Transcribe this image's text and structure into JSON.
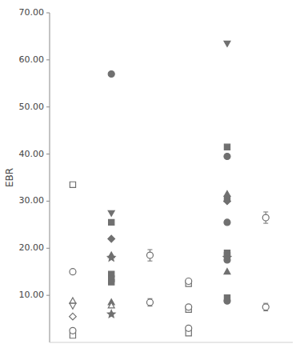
{
  "chart_data": {
    "type": "scatter",
    "ylabel": "EBR",
    "xlim": [
      0.4,
      6.7
    ],
    "xticks": [],
    "ylim": [
      0,
      70
    ],
    "yticks": [
      {
        "value": 10,
        "label": "10.00"
      },
      {
        "value": 20,
        "label": "20.00"
      },
      {
        "value": 30,
        "label": "30.00"
      },
      {
        "value": 40,
        "label": "40.00"
      },
      {
        "value": 50,
        "label": "50.00"
      },
      {
        "value": 60,
        "label": "60.00"
      },
      {
        "value": 70,
        "label": "70.00"
      }
    ],
    "grid": false,
    "tick_labels": "y",
    "color": "#707070",
    "series": [
      {
        "marker": "square",
        "x": [
          1,
          1,
          2,
          2,
          2,
          2,
          4,
          4,
          4,
          5,
          5,
          5,
          5,
          5
        ],
        "values": [
          33.5,
          1.5,
          25.5,
          14.5,
          13.5,
          12.8,
          12.5,
          7.0,
          2.0,
          41.5,
          30.5,
          19.0,
          18.5,
          9.5
        ],
        "colors": [
          "#ffffff",
          "#ffffff",
          "#707070",
          "#707070",
          "#707070",
          "#707070",
          "#ffffff",
          "#ffffff",
          "#ffffff",
          "#707070",
          "#707070",
          "#707070",
          "#707070",
          "#707070"
        ]
      },
      {
        "marker": "circle",
        "x": [
          1,
          1,
          2,
          3,
          3,
          4,
          4,
          4,
          5,
          5,
          5,
          5,
          6,
          6
        ],
        "values": [
          15.0,
          2.5,
          57.0,
          18.5,
          8.5,
          13.0,
          7.5,
          3.0,
          39.5,
          25.5,
          17.5,
          8.8,
          26.5,
          7.5
        ],
        "errors": [
          null,
          null,
          null,
          1.2,
          0.8,
          null,
          null,
          null,
          null,
          null,
          null,
          null,
          1.2,
          0.8
        ],
        "colors": [
          "#ffffff",
          "#ffffff",
          "#707070",
          "#ffffff",
          "#ffffff",
          "#ffffff",
          "#ffffff",
          "#ffffff",
          "#707070",
          "#707070",
          "#707070",
          "#707070",
          "#ffffff",
          "#ffffff"
        ]
      },
      {
        "marker": "triangle-up",
        "x": [
          1,
          2,
          2,
          2,
          5,
          5
        ],
        "values": [
          8.8,
          18.5,
          8.5,
          7.8,
          31.5,
          15.0
        ],
        "colors": [
          "#ffffff",
          "#707070",
          "#707070",
          "#ffffff",
          "#707070",
          "#707070"
        ]
      },
      {
        "marker": "triangle-down",
        "x": [
          1,
          2,
          5
        ],
        "values": [
          7.8,
          27.5,
          63.5
        ],
        "colors": [
          "#ffffff",
          "#707070",
          "#707070"
        ]
      },
      {
        "marker": "diamond",
        "x": [
          1,
          2,
          5
        ],
        "values": [
          5.5,
          22.0,
          30.0
        ],
        "colors": [
          "#ffffff",
          "#707070",
          "#707070"
        ]
      },
      {
        "marker": "star",
        "x": [
          2,
          2,
          5
        ],
        "values": [
          18.0,
          6.0,
          18.0
        ],
        "colors": [
          "#707070",
          "#707070",
          "#707070"
        ]
      }
    ]
  }
}
